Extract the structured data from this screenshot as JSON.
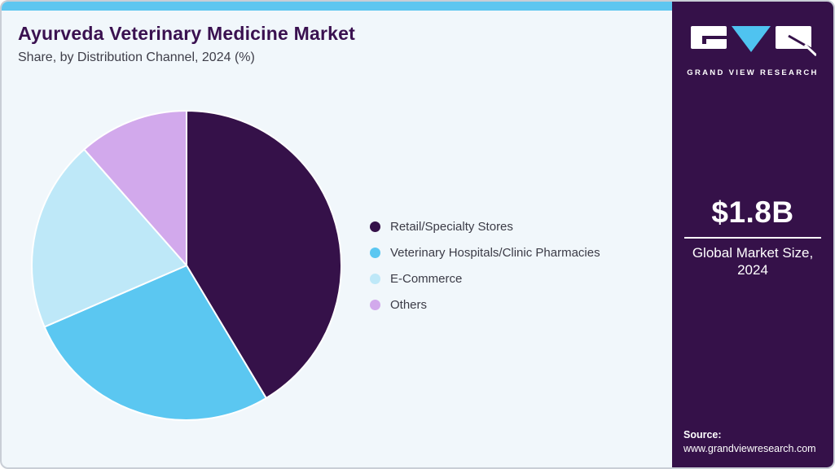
{
  "header": {
    "title": "Ayurveda Veterinary Medicine Market",
    "subtitle": "Share, by Distribution Channel, 2024 (%)"
  },
  "chart_data": {
    "type": "pie",
    "title": "Ayurveda Veterinary Medicine Market Share, by Distribution Channel, 2024 (%)",
    "start_angle_deg": 0,
    "direction": "clockwise",
    "legend_position": "right",
    "note": "slice values are percent shares estimated from arc angles; no numeric labels shown in figure",
    "slices": [
      {
        "label": "Retail/Specialty Stores",
        "value": 41.4,
        "color": "#351149"
      },
      {
        "label": "Veterinary Hospitals/Clinic Pharmacies",
        "value": 27.1,
        "color": "#5bc7f1"
      },
      {
        "label": "E-Commerce",
        "value": 20.0,
        "color": "#bee8f8"
      },
      {
        "label": "Others",
        "value": 11.5,
        "color": "#d2a9ec"
      }
    ]
  },
  "sidebar": {
    "logo_name": "GRAND VIEW RESEARCH",
    "market_size_value": "$1.8B",
    "market_size_caption": "Global Market Size, 2024",
    "source_label": "Source:",
    "source_url": "www.grandviewresearch.com"
  },
  "colors": {
    "topbar": "#5ec6f0",
    "card_background": "#f1f7fb",
    "card_border": "#c9ced6",
    "sidebar_background": "#351149",
    "title_text": "#3a1150",
    "subtitle_text": "#3e3e49",
    "legend_text": "#3b3b46",
    "logo_triangle": "#4fc3f0",
    "slice_separator": "#ffffff"
  }
}
